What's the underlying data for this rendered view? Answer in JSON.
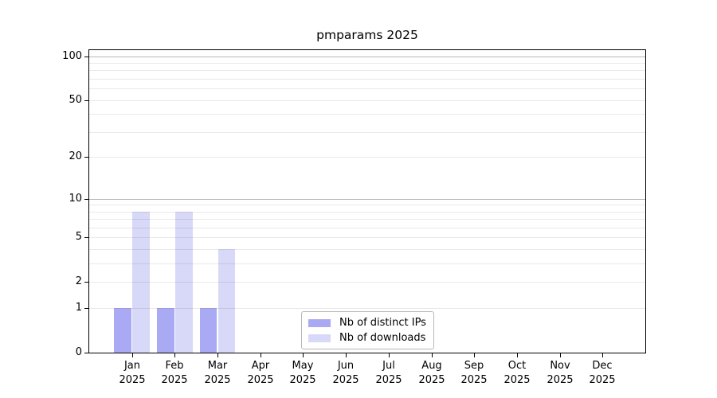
{
  "chart_data": {
    "type": "bar",
    "title": "pmparams 2025",
    "categories": [
      "Jan",
      "Feb",
      "Mar",
      "Apr",
      "May",
      "Jun",
      "Jul",
      "Aug",
      "Sep",
      "Oct",
      "Nov",
      "Dec"
    ],
    "category_year": "2025",
    "series": [
      {
        "name": "Nb of distinct IPs",
        "color": "#a9a9f4",
        "values": [
          1,
          1,
          1,
          0,
          0,
          0,
          0,
          0,
          0,
          0,
          0,
          0
        ]
      },
      {
        "name": "Nb of downloads",
        "color": "#d8d8f8",
        "values": [
          8,
          8,
          4,
          0,
          0,
          0,
          0,
          0,
          0,
          0,
          0,
          0
        ]
      }
    ],
    "y_axis": {
      "scale": "log1p",
      "tick_values": [
        0,
        1,
        2,
        5,
        10,
        20,
        50,
        100
      ],
      "major_gridline_values": [
        10,
        100
      ],
      "minor_gridline_values": [
        1,
        2,
        3,
        4,
        5,
        6,
        7,
        8,
        9,
        20,
        30,
        40,
        50,
        60,
        70,
        80,
        90
      ],
      "limit_top": 110
    },
    "grid": "on",
    "legend_position": "lower center",
    "colors": {
      "axis": "#000000",
      "grid_major": "rgba(0,0,0,0.28)",
      "grid_minor": "rgba(0,0,0,0.085)"
    }
  }
}
